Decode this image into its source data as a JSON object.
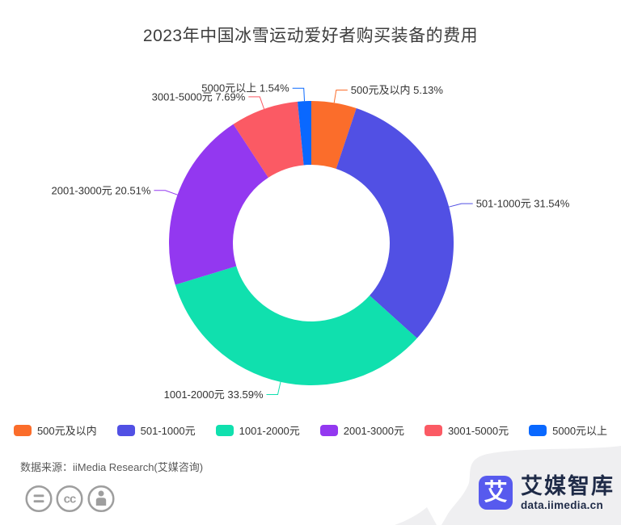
{
  "title": "2023年中国冰雪运动爱好者购买装备的费用",
  "chart_data": {
    "type": "pie",
    "subtype": "donut",
    "start_angle_deg": 0,
    "direction": "clockwise",
    "label_format": "{label} {value}%",
    "legend_position": "bottom",
    "segments": [
      {
        "label": "500元及以内",
        "value": 5.13,
        "color": "#FB6D2B"
      },
      {
        "label": "501-1000元",
        "value": 31.54,
        "color": "#5150E4"
      },
      {
        "label": "1001-2000元",
        "value": 33.59,
        "color": "#10E0AE"
      },
      {
        "label": "2001-3000元",
        "value": 20.51,
        "color": "#9338F0"
      },
      {
        "label": "3001-5000元",
        "value": 7.69,
        "color": "#FB5A64"
      },
      {
        "label": "5000元以上",
        "value": 1.54,
        "color": "#0968FF"
      }
    ]
  },
  "footer": {
    "source_text": "数据来源：iiMedia Research(艾媒咨询)",
    "license_icons": [
      "equals-icon",
      "cc-icon",
      "person-icon"
    ]
  },
  "branding": {
    "logo_glyph": "艾",
    "brand_name": "艾媒智库",
    "brand_url": "data.iimedia.cn",
    "logo_color": "#575AEE",
    "text_color": "#1E2A47",
    "swoosh_color": "#EFEFF1"
  }
}
